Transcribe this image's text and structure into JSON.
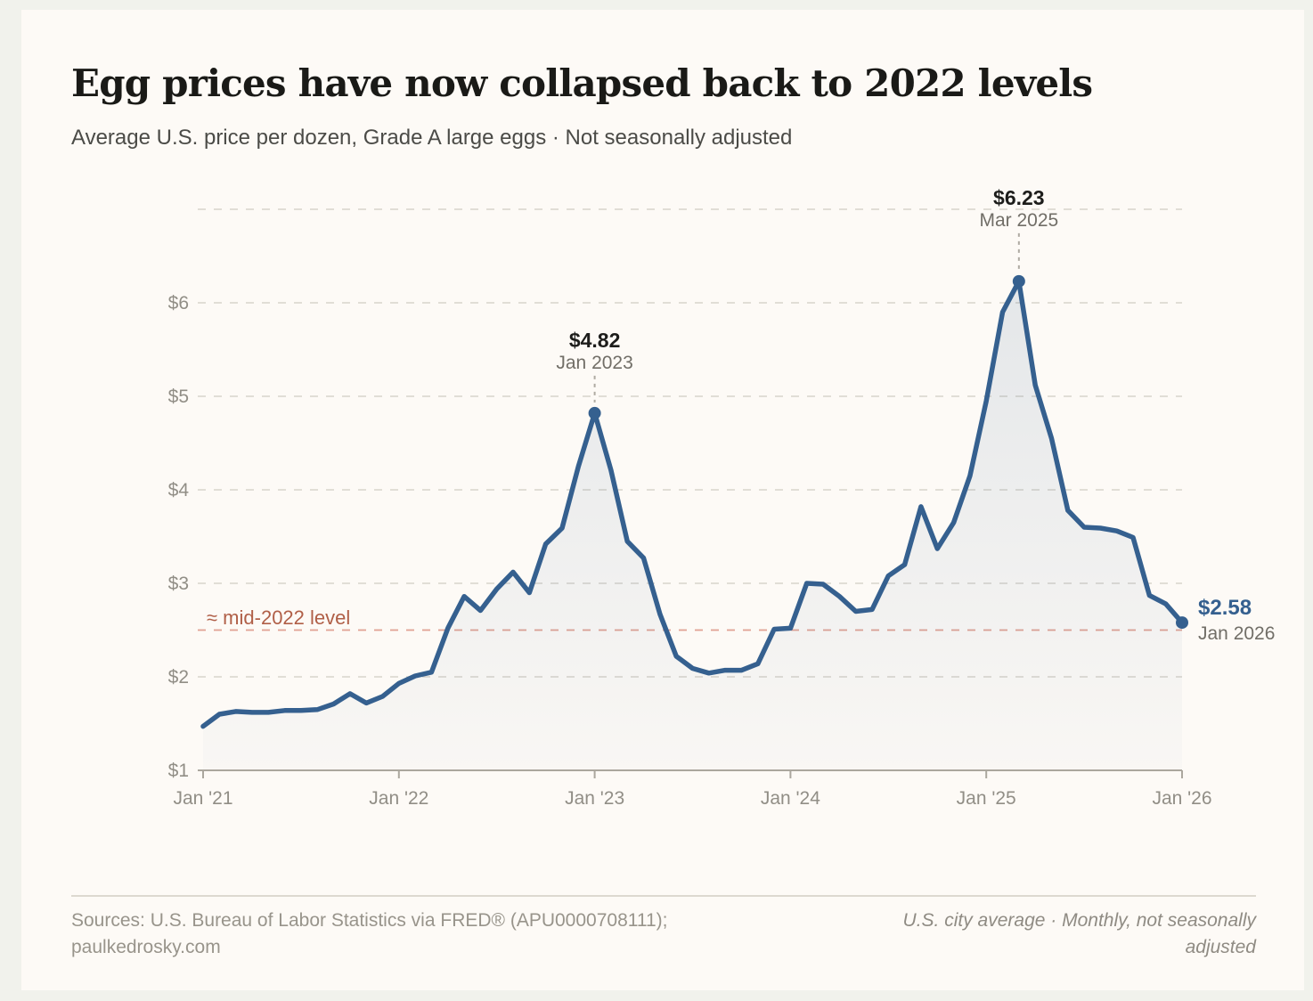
{
  "page": {
    "background_color": "#f1f2ec",
    "card_color": "#fdfaf6",
    "top_bar_color": "#1c1b16"
  },
  "header": {
    "title": "Egg prices have now collapsed back to 2022 levels",
    "subtitle": "Average U.S. price per dozen, Grade A large eggs  ·  Not seasonally adjusted"
  },
  "chart_data": {
    "type": "line",
    "title": "Egg prices have now collapsed back to 2022 levels",
    "start_month": "Jan 2021",
    "end_month": "Jan 2026",
    "frequency": "monthly",
    "ylim": [
      1,
      7
    ],
    "grid": "dashed horizontal gridlines",
    "legend": "none",
    "x_tick_labels": [
      "Jan '21",
      "Jan '22",
      "Jan '23",
      "Jan '24",
      "Jan '25",
      "Jan '26"
    ],
    "y_tick_labels": [
      "$1",
      "$2",
      "$3",
      "$4",
      "$5",
      "$6"
    ],
    "series": [
      {
        "name": "Average U.S. price per dozen, Grade A large eggs",
        "color": "#35608f",
        "monthly_values": [
          1.47,
          1.6,
          1.63,
          1.62,
          1.62,
          1.64,
          1.64,
          1.65,
          1.71,
          1.82,
          1.72,
          1.79,
          1.93,
          2.01,
          2.05,
          2.52,
          2.86,
          2.71,
          2.94,
          3.12,
          2.9,
          3.42,
          3.59,
          4.25,
          4.82,
          4.21,
          3.45,
          3.27,
          2.67,
          2.22,
          2.09,
          2.04,
          2.07,
          2.07,
          2.14,
          2.51,
          2.52,
          3.0,
          2.99,
          2.86,
          2.7,
          2.72,
          3.08,
          3.2,
          3.82,
          3.37,
          3.65,
          4.15,
          4.95,
          5.9,
          6.23,
          5.12,
          4.55,
          3.78,
          3.6,
          3.59,
          3.56,
          3.49,
          2.87,
          2.78,
          2.58
        ]
      }
    ],
    "annotations": [
      {
        "style": "peak",
        "label_value": "$4.82",
        "label_date": "Jan 2023",
        "month_index": 24,
        "value": 4.82
      },
      {
        "style": "peak",
        "label_value": "$6.23",
        "label_date": "Mar 2025",
        "month_index": 50,
        "value": 6.23
      },
      {
        "style": "end",
        "label_value": "$2.58",
        "label_date": "Jan 2026",
        "month_index": 60,
        "value": 2.58
      }
    ],
    "reference_line": {
      "value": 2.5,
      "label": "≈ mid-2022 level",
      "label_color": "#b05f47",
      "line_color": "#e0a193"
    }
  },
  "footer": {
    "sources_line1": "Sources: U.S. Bureau of Labor Statistics via FRED® (APU0000708111);",
    "sources_line2": "paulkedrosky.com",
    "right_note": "U.S. city average · Monthly, not seasonally adjusted"
  }
}
